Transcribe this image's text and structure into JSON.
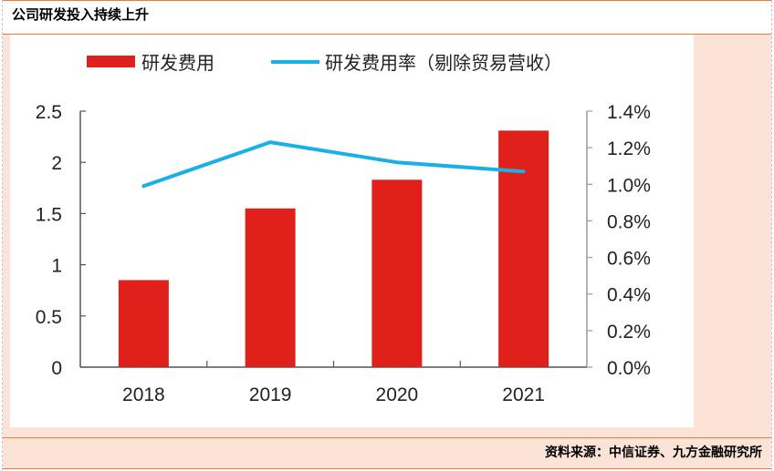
{
  "header": {
    "title": "公司研发投入持续上升"
  },
  "footer": {
    "source": "资料来源：中信证券、九方金融研究所"
  },
  "colors": {
    "bar": "#e0201a",
    "line": "#19b0e6",
    "accent_rule": "#ef7d2f",
    "panel_bg": "#fce3d7",
    "axis": "#555555"
  },
  "chart_data": {
    "type": "bar",
    "title": "",
    "xlabel": "",
    "ylabel": "",
    "categories": [
      "2018",
      "2019",
      "2020",
      "2021"
    ],
    "series": [
      {
        "name": "研发费用",
        "type": "bar",
        "axis": "left",
        "values": [
          0.85,
          1.55,
          1.83,
          2.31
        ]
      },
      {
        "name": "研发费用率（剔除贸易营收）",
        "type": "line",
        "axis": "right",
        "values": [
          0.99,
          1.23,
          1.12,
          1.07
        ],
        "unit": "%"
      }
    ],
    "ylim": [
      0,
      2.5
    ],
    "y_ticks": [
      "0",
      "0.5",
      "1",
      "1.5",
      "2",
      "2.5"
    ],
    "y_tick_values": [
      0,
      0.5,
      1,
      1.5,
      2,
      2.5
    ],
    "y2lim": [
      0,
      1.4
    ],
    "y2_ticks": [
      "0.0%",
      "0.2%",
      "0.4%",
      "0.6%",
      "0.8%",
      "1.0%",
      "1.2%",
      "1.4%"
    ],
    "y2_tick_values": [
      0,
      0.2,
      0.4,
      0.6,
      0.8,
      1.0,
      1.2,
      1.4
    ],
    "legend": {
      "placement": "top",
      "entries": [
        "研发费用",
        "研发费用率（剔除贸易营收）"
      ]
    },
    "grid": false
  }
}
